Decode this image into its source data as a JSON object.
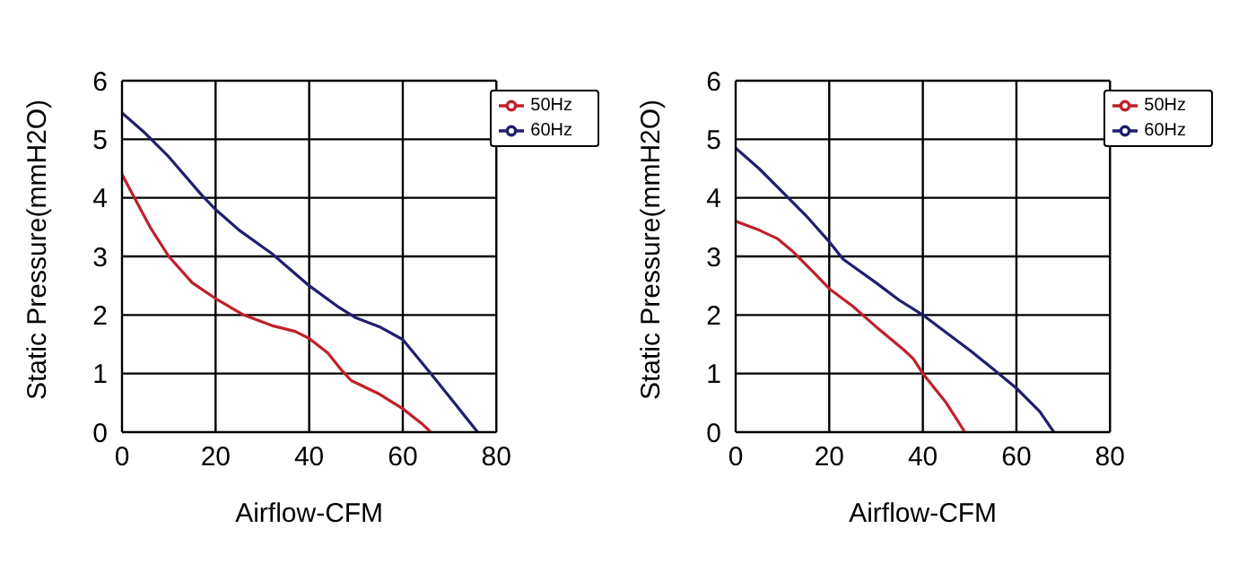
{
  "chart_data": [
    {
      "type": "line",
      "xlabel": "Airflow-CFM",
      "ylabel": "Static Pressure(mmH2O)",
      "xlim": [
        0,
        80
      ],
      "xticks": [
        0,
        20,
        40,
        60,
        80
      ],
      "ylim": [
        0,
        6
      ],
      "yticks": [
        0,
        1,
        2,
        3,
        4,
        5,
        6
      ],
      "grid": true,
      "legend": "top right",
      "marker": "none",
      "line_style": "solid",
      "series": [
        {
          "name": "60Hz",
          "color": "#1f1f6e",
          "x": [
            0,
            5,
            10,
            17,
            20,
            25,
            32,
            40,
            46,
            50,
            55,
            60,
            66,
            71,
            76
          ],
          "values": [
            5.45,
            5.1,
            4.7,
            4.05,
            3.8,
            3.45,
            3.05,
            2.5,
            2.15,
            1.95,
            1.8,
            1.58,
            1.0,
            0.5,
            0
          ]
        },
        {
          "name": "50Hz",
          "color": "#c0202a",
          "x": [
            0,
            3,
            6,
            10,
            15,
            20,
            26,
            32,
            37,
            40,
            44,
            47,
            49,
            55,
            60,
            64,
            66
          ],
          "values": [
            4.4,
            3.95,
            3.5,
            3.0,
            2.55,
            2.28,
            2.0,
            1.82,
            1.72,
            1.6,
            1.35,
            1.05,
            0.88,
            0.65,
            0.4,
            0.15,
            0
          ]
        }
      ]
    },
    {
      "type": "line",
      "xlabel": "Airflow-CFM",
      "ylabel": "Static Pressure(mmH2O)",
      "xlim": [
        0,
        80
      ],
      "xticks": [
        0,
        20,
        40,
        60,
        80
      ],
      "ylim": [
        0,
        6
      ],
      "yticks": [
        0,
        1,
        2,
        3,
        4,
        5,
        6
      ],
      "grid": true,
      "legend": "top right",
      "marker": "none",
      "line_style": "solid",
      "series": [
        {
          "name": "60Hz",
          "color": "#1f1f6e",
          "x": [
            0,
            5,
            10,
            15,
            20,
            23,
            30,
            35,
            40,
            45,
            50,
            55,
            60,
            65,
            68
          ],
          "values": [
            4.85,
            4.5,
            4.1,
            3.7,
            3.25,
            2.95,
            2.55,
            2.25,
            2.0,
            1.7,
            1.4,
            1.08,
            0.75,
            0.35,
            0
          ]
        },
        {
          "name": "50Hz",
          "color": "#c0202a",
          "x": [
            0,
            5,
            9,
            12,
            17,
            20,
            25,
            30,
            36,
            38,
            40,
            45,
            49
          ],
          "values": [
            3.6,
            3.45,
            3.3,
            3.1,
            2.7,
            2.45,
            2.15,
            1.8,
            1.4,
            1.25,
            1.0,
            0.5,
            0
          ]
        }
      ]
    }
  ]
}
